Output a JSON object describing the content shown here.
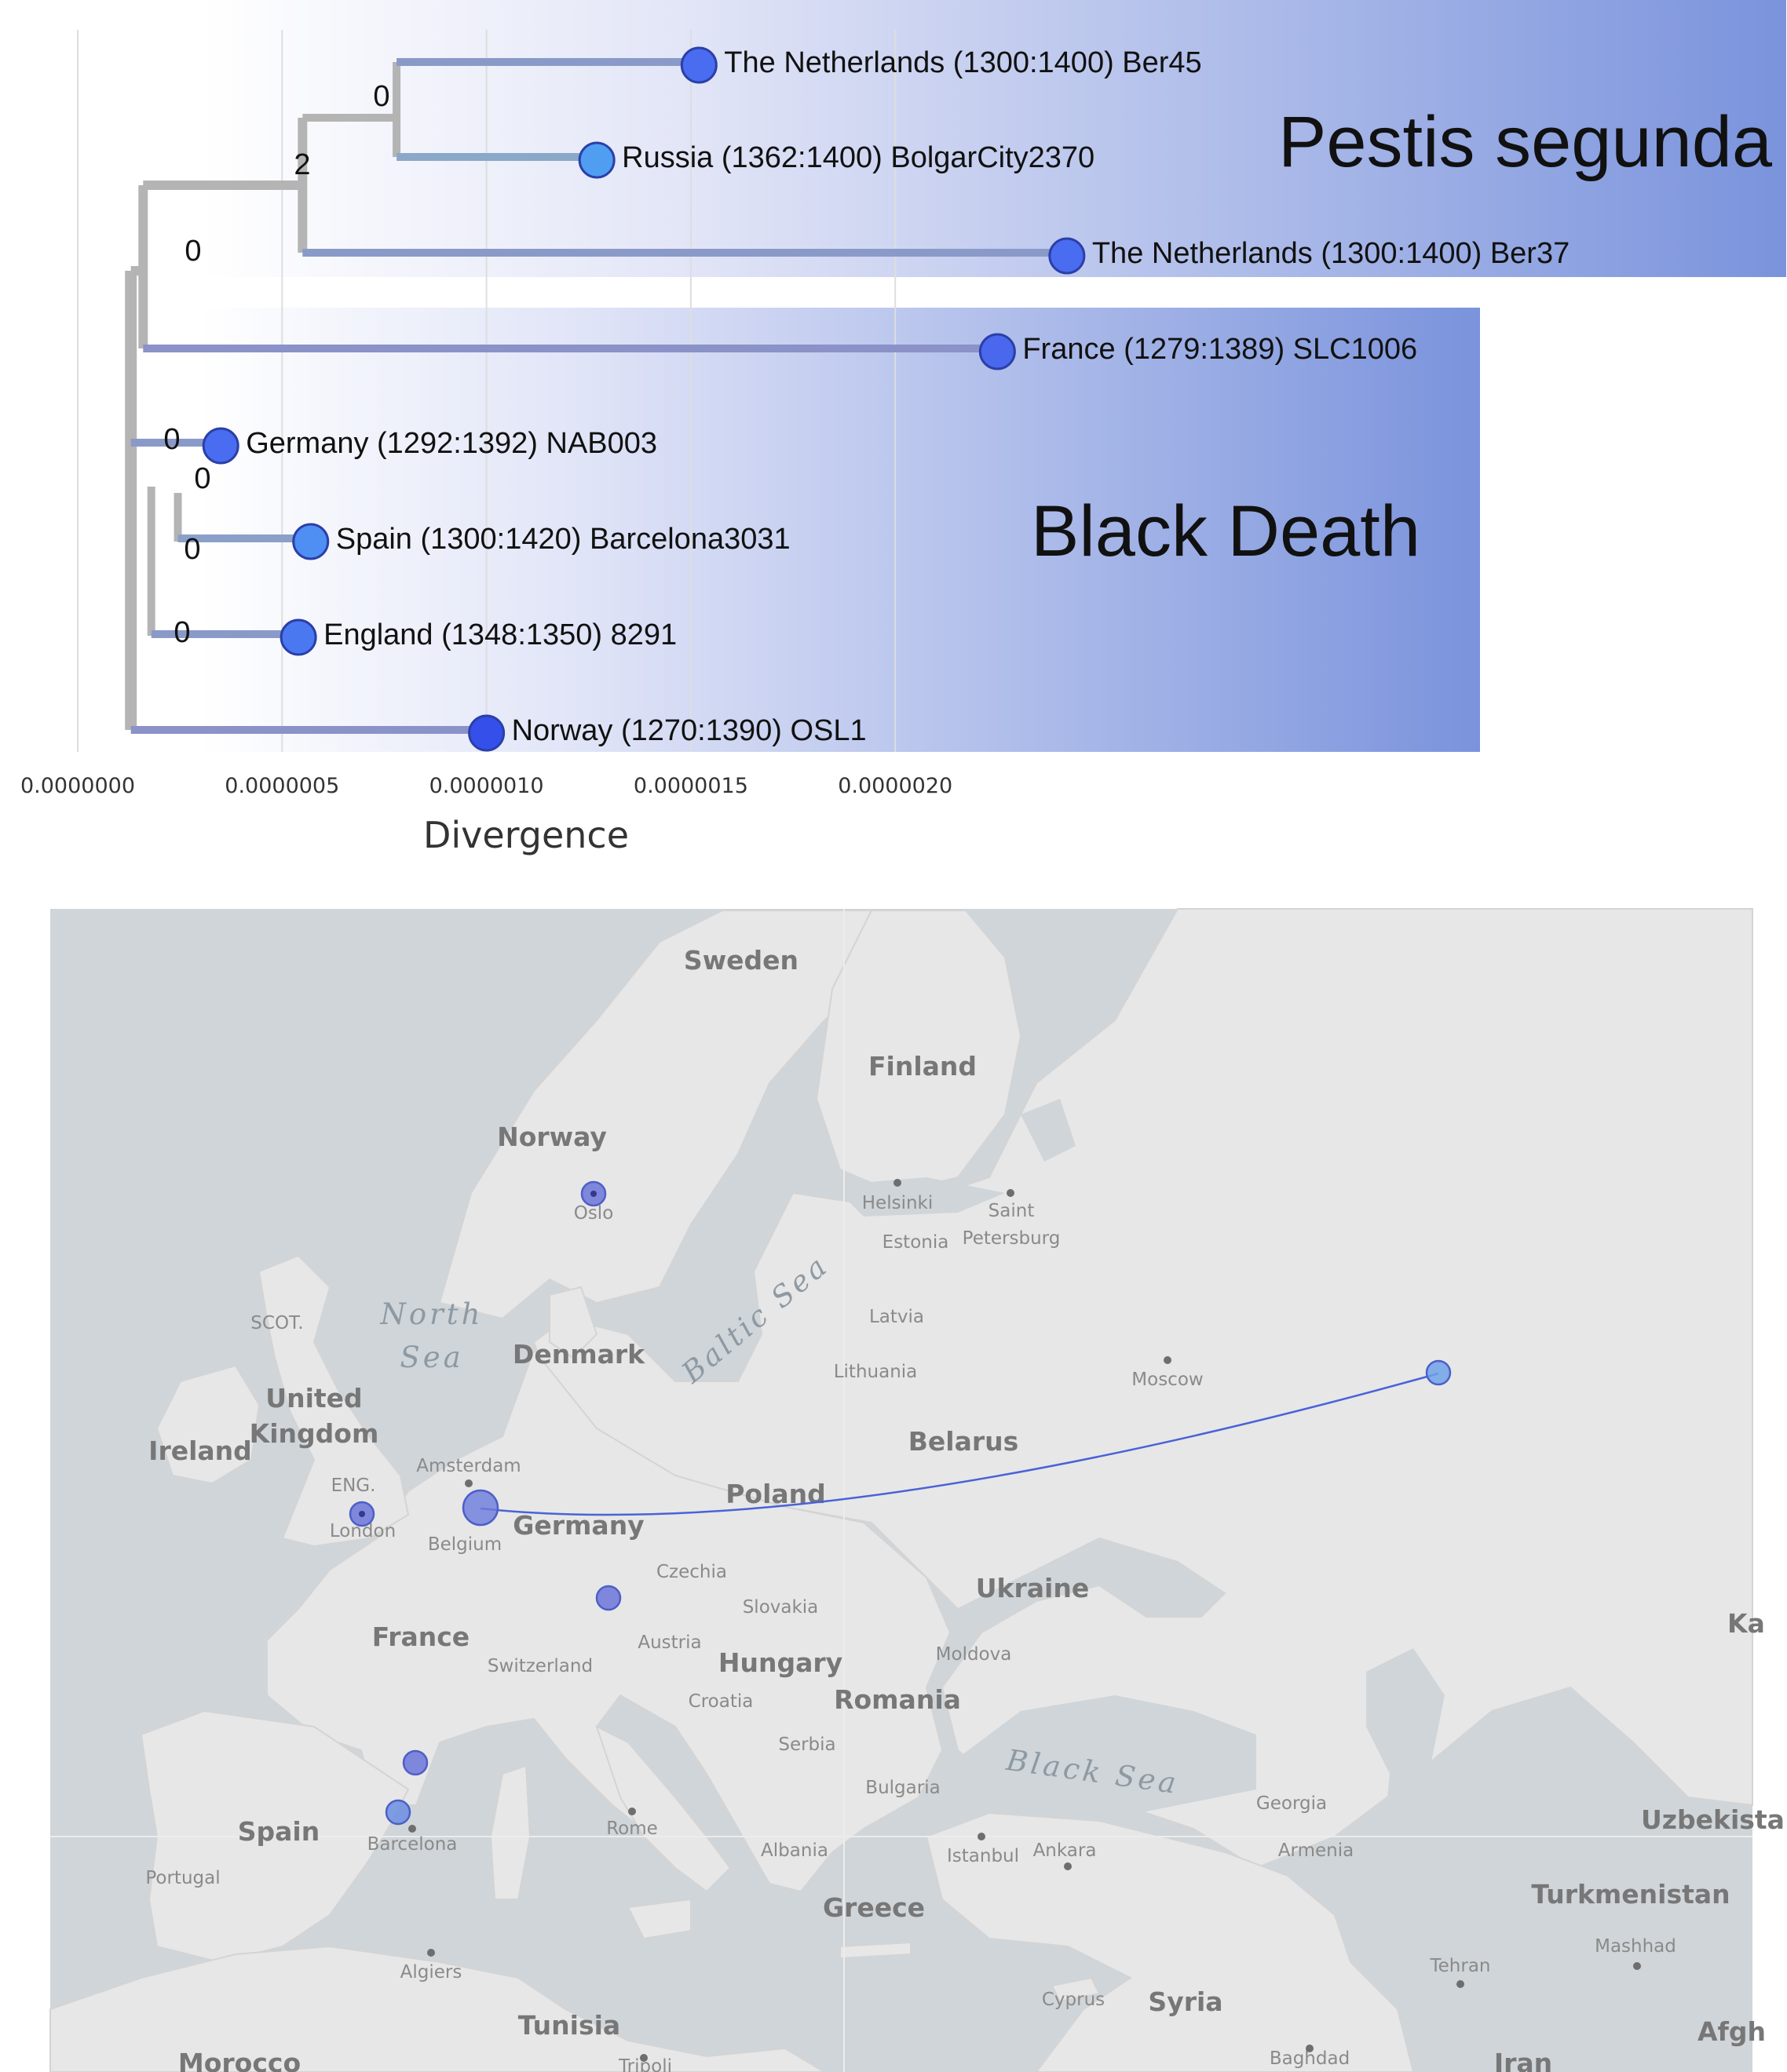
{
  "chart_data": {
    "type": "phylogenetic-tree",
    "xlabel": "Divergence",
    "x_ticks": [
      "0.0000000",
      "0.0000005",
      "0.0000010",
      "0.0000015",
      "0.0000020"
    ],
    "xlim": [
      0,
      2.2e-06
    ],
    "grid": "vertical",
    "tips": [
      {
        "label": "The Netherlands (1300:1400) Ber45",
        "divergence": 1.52e-06,
        "color": "#4a6cf0"
      },
      {
        "label": "Russia (1362:1400) BolgarCity2370",
        "divergence": 1.27e-06,
        "color": "#4f9ef2"
      },
      {
        "label": "The Netherlands (1300:1400) Ber37",
        "divergence": 2.42e-06,
        "color": "#4a6cf0"
      },
      {
        "label": "France (1279:1389) SLC1006",
        "divergence": 2.25e-06,
        "color": "#4a68ee"
      },
      {
        "label": "Germany (1292:1392) NAB003",
        "divergence": 3.5e-07,
        "color": "#4a6cf0"
      },
      {
        "label": "Spain (1300:1420) Barcelona3031",
        "divergence": 5.7e-07,
        "color": "#4f8ef2"
      },
      {
        "label": "England (1348:1350) 8291",
        "divergence": 5.4e-07,
        "color": "#4a78f0"
      },
      {
        "label": "Norway (1270:1390) OSL1",
        "divergence": 1e-06,
        "color": "#3550ea"
      }
    ],
    "branch_labels": [
      "0",
      "2",
      "0",
      "0",
      "0",
      "0",
      "0"
    ],
    "clades": [
      {
        "name": "Pestis segunda",
        "tips": [
          "Ber45",
          "BolgarCity2370",
          "Ber37"
        ]
      },
      {
        "name": "Black Death",
        "tips": [
          "SLC1006",
          "NAB003",
          "Barcelona3031",
          "8291",
          "OSL1"
        ]
      }
    ]
  },
  "map": {
    "countries": [
      "Sweden",
      "Finland",
      "Norway",
      "Denmark",
      "United",
      "Kingdom",
      "Ireland",
      "Belarus",
      "Poland",
      "Germany",
      "Ukraine",
      "France",
      "Hungary",
      "Romania",
      "Spain",
      "Greece",
      "Syria",
      "Tunisia",
      "Morocco",
      "Uzbekista",
      "Turkmenistan",
      "Iran",
      "Afgh",
      "Ka"
    ],
    "small_countries": [
      "Estonia",
      "Latvia",
      "Lithuania",
      "Belgium",
      "Czechia",
      "Slovakia",
      "Austria",
      "Switzerland",
      "Moldova",
      "Croatia",
      "Serbia",
      "Bulgaria",
      "Albania",
      "Georgia",
      "Armenia",
      "Portugal",
      "Cyprus",
      "SCOT.",
      "ENG."
    ],
    "cities": [
      "Helsinki",
      "Saint",
      "Petersburg",
      "Oslo",
      "Moscow",
      "Amsterdam",
      "London",
      "Rome",
      "Barcelona",
      "Istanbul",
      "Ankara",
      "Algiers",
      "Tehran",
      "Mashhad",
      "Tripoli",
      "Baghdad"
    ],
    "seas": [
      "North",
      "Sea",
      "Baltic Sea",
      "Black Sea"
    ],
    "points": [
      "Oslo",
      "London",
      "Netherlands",
      "Germany",
      "France",
      "Barcelona",
      "Russia"
    ]
  }
}
